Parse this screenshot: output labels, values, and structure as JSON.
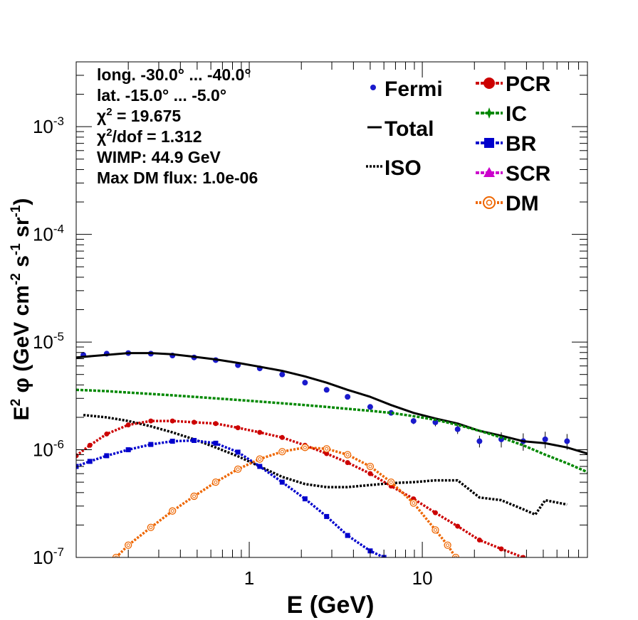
{
  "chart_data": {
    "type": "line",
    "title": "",
    "xlabel": "E (GeV)",
    "ylabel_parts": [
      "E",
      "2",
      " φ (GeV cm",
      "-2",
      " s",
      "-1",
      " sr",
      "-1",
      ")"
    ],
    "x_scale": "log",
    "y_scale": "log",
    "xlim": [
      0.1,
      90
    ],
    "ylim": [
      1e-07,
      0.004
    ],
    "x_ticks": [
      {
        "value": 1,
        "label": "1"
      },
      {
        "value": 10,
        "label": "10"
      }
    ],
    "y_ticks": [
      {
        "value": 1e-07,
        "base": "10",
        "exp": "-7"
      },
      {
        "value": 1e-06,
        "base": "10",
        "exp": "-6"
      },
      {
        "value": 1e-05,
        "base": "10",
        "exp": "-5"
      },
      {
        "value": 0.0001,
        "base": "10",
        "exp": "-4"
      },
      {
        "value": 0.001,
        "base": "10",
        "exp": "-3"
      }
    ],
    "info_lines": [
      "long. -30.0° ... -40.0°",
      "lat. -15.0° ... -5.0°",
      "χ2 = 19.675",
      "χ2/dof = 1.312",
      "WIMP: 44.9 GeV",
      "Max DM flux: 1.0e-06"
    ],
    "legend_left": [
      {
        "name": "Fermi",
        "color": "#1a1acc",
        "style": "point"
      },
      {
        "name": "Total",
        "color": "#000000",
        "style": "solid"
      },
      {
        "name": "ISO",
        "color": "#000000",
        "style": "dotted"
      }
    ],
    "legend_right": [
      {
        "name": "PCR",
        "color": "#cc0000",
        "style": "circle"
      },
      {
        "name": "IC",
        "color": "#008800",
        "style": "star"
      },
      {
        "name": "BR",
        "color": "#0000cc",
        "style": "square"
      },
      {
        "name": "SCR",
        "color": "#cc00cc",
        "style": "triangle"
      },
      {
        "name": "DM",
        "color": "#ee6600",
        "style": "opencircle"
      }
    ],
    "series": [
      {
        "key": "fermi",
        "name": "Fermi",
        "color": "#1a1acc",
        "x": [
          0.11,
          0.15,
          0.2,
          0.27,
          0.36,
          0.48,
          0.64,
          0.86,
          1.15,
          1.55,
          2.1,
          2.8,
          3.7,
          5.0,
          6.6,
          8.9,
          11.9,
          16.0,
          21.4,
          28.6,
          38.3,
          51.3,
          68.6
        ],
        "y": [
          7.6e-06,
          7.8e-06,
          7.9e-06,
          7.8e-06,
          7.5e-06,
          7.2e-06,
          6.8e-06,
          6.1e-06,
          5.7e-06,
          5e-06,
          4.2e-06,
          3.6e-06,
          3.1e-06,
          2.5e-06,
          2.2e-06,
          1.85e-06,
          1.8e-06,
          1.55e-06,
          1.2e-06,
          1.25e-06,
          1.2e-06,
          1.25e-06,
          1.2e-06
        ],
        "yerr": [
          1.5e-07,
          1.5e-07,
          1.5e-07,
          1.5e-07,
          1.5e-07,
          1.5e-07,
          1.5e-07,
          1.5e-07,
          1.5e-07,
          1.5e-07,
          1.2e-07,
          1.2e-07,
          1e-07,
          1e-07,
          1e-07,
          1.2e-07,
          1.5e-07,
          1.5e-07,
          1.5e-07,
          2e-07,
          2.2e-07,
          2.2e-07,
          2e-07
        ]
      },
      {
        "key": "total",
        "name": "Total",
        "color": "#000000",
        "x": [
          0.1,
          0.15,
          0.2,
          0.27,
          0.36,
          0.48,
          0.64,
          0.86,
          1.15,
          1.55,
          2.1,
          2.8,
          3.7,
          5.0,
          6.6,
          8.9,
          11.9,
          16.0,
          21.4,
          28.6,
          38.3,
          51.3,
          68.6,
          90
        ],
        "y": [
          7.2e-06,
          7.6e-06,
          7.9e-06,
          7.9e-06,
          7.7e-06,
          7.3e-06,
          6.9e-06,
          6.4e-06,
          5.9e-06,
          5.4e-06,
          4.8e-06,
          4.2e-06,
          3.6e-06,
          3.1e-06,
          2.6e-06,
          2.2e-06,
          1.95e-06,
          1.75e-06,
          1.5e-06,
          1.35e-06,
          1.2e-06,
          1.15e-06,
          1.05e-06,
          9.2e-07
        ]
      },
      {
        "key": "iso",
        "name": "ISO",
        "color": "#000000",
        "x": [
          0.11,
          0.15,
          0.2,
          0.27,
          0.36,
          0.48,
          0.64,
          0.86,
          1.15,
          1.55,
          2.1,
          2.8,
          3.7,
          5.0,
          6.6,
          8.9,
          11.9,
          16.0,
          21.4,
          28.6,
          38.3,
          45,
          51.3,
          68.6
        ],
        "y": [
          2.1e-06,
          2e-06,
          1.85e-06,
          1.65e-06,
          1.45e-06,
          1.25e-06,
          1.05e-06,
          8.7e-07,
          7e-07,
          5.6e-07,
          4.8e-07,
          4.5e-07,
          4.5e-07,
          4.7e-07,
          4.9e-07,
          5e-07,
          5.2e-07,
          5.2e-07,
          3.6e-07,
          3.4e-07,
          2.8e-07,
          2.5e-07,
          3.4e-07,
          3.1e-07
        ]
      },
      {
        "key": "ic",
        "name": "IC",
        "color": "#008800",
        "x": [
          0.1,
          0.15,
          0.2,
          0.27,
          0.36,
          0.48,
          0.64,
          0.86,
          1.15,
          1.55,
          2.1,
          2.8,
          3.7,
          5.0,
          6.6,
          8.9,
          11.9,
          16.0,
          21.4,
          28.6,
          38.3,
          51.3,
          68.6,
          90
        ],
        "y": [
          3.6e-06,
          3.5e-06,
          3.4e-06,
          3.3e-06,
          3.2e-06,
          3.1e-06,
          3e-06,
          2.9e-06,
          2.8e-06,
          2.7e-06,
          2.6e-06,
          2.5e-06,
          2.4e-06,
          2.3e-06,
          2.2e-06,
          2.05e-06,
          1.9e-06,
          1.7e-06,
          1.5e-06,
          1.3e-06,
          1.1e-06,
          9e-07,
          7.5e-07,
          6.2e-07
        ]
      },
      {
        "key": "pcr",
        "name": "PCR",
        "color": "#cc0000",
        "x": [
          0.1,
          0.12,
          0.15,
          0.2,
          0.27,
          0.36,
          0.48,
          0.64,
          0.86,
          1.15,
          1.55,
          2.1,
          2.8,
          3.7,
          5.0,
          6.6,
          8.9,
          11.9,
          16.0,
          21.4,
          28.6,
          38.3
        ],
        "y": [
          8.8e-07,
          1.1e-06,
          1.4e-06,
          1.7e-06,
          1.85e-06,
          1.85e-06,
          1.8e-06,
          1.75e-06,
          1.6e-06,
          1.45e-06,
          1.3e-06,
          1.1e-06,
          9.2e-07,
          7.6e-07,
          6e-07,
          4.6e-07,
          3.5e-07,
          2.6e-07,
          1.95e-07,
          1.45e-07,
          1.2e-07,
          1e-07
        ]
      },
      {
        "key": "br",
        "name": "BR",
        "color": "#0000cc",
        "x": [
          0.1,
          0.12,
          0.15,
          0.2,
          0.27,
          0.36,
          0.48,
          0.64,
          0.86,
          1.15,
          1.55,
          2.1,
          2.8,
          3.7,
          5.0,
          6.0
        ],
        "y": [
          7e-07,
          7.8e-07,
          8.8e-07,
          1e-06,
          1.12e-06,
          1.2e-06,
          1.22e-06,
          1.15e-06,
          9.5e-07,
          7e-07,
          5e-07,
          3.5e-07,
          2.4e-07,
          1.6e-07,
          1.15e-07,
          1e-07
        ]
      },
      {
        "key": "dm",
        "name": "DM",
        "color": "#ee6600",
        "x": [
          0.17,
          0.2,
          0.27,
          0.36,
          0.48,
          0.64,
          0.86,
          1.15,
          1.55,
          2.1,
          2.8,
          3.7,
          5.0,
          6.6,
          8.9,
          11.9,
          14.0,
          15.6
        ],
        "y": [
          1e-07,
          1.3e-07,
          1.9e-07,
          2.7e-07,
          3.7e-07,
          5e-07,
          6.6e-07,
          8.2e-07,
          9.6e-07,
          1.05e-06,
          1.02e-06,
          9e-07,
          7e-07,
          5e-07,
          3.2e-07,
          1.8e-07,
          1.3e-07,
          1e-07
        ]
      }
    ],
    "grid": false,
    "legend_placement": "top-right"
  }
}
